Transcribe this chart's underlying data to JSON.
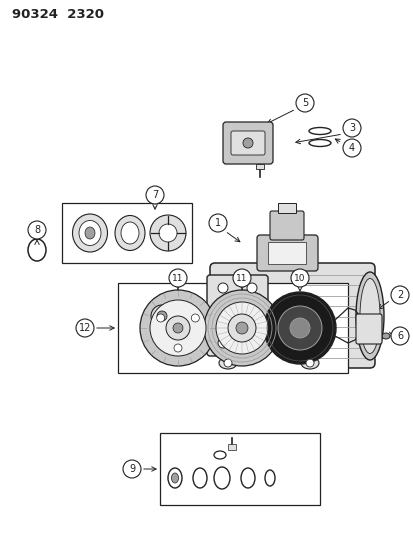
{
  "title": "90324  2320",
  "bg": "#ffffff",
  "lc": "#222222",
  "fig_w": 4.14,
  "fig_h": 5.33,
  "dpi": 100,
  "gray1": "#c8c8c8",
  "gray2": "#e0e0e0",
  "gray3": "#a0a0a0",
  "gray4": "#f0f0f0"
}
